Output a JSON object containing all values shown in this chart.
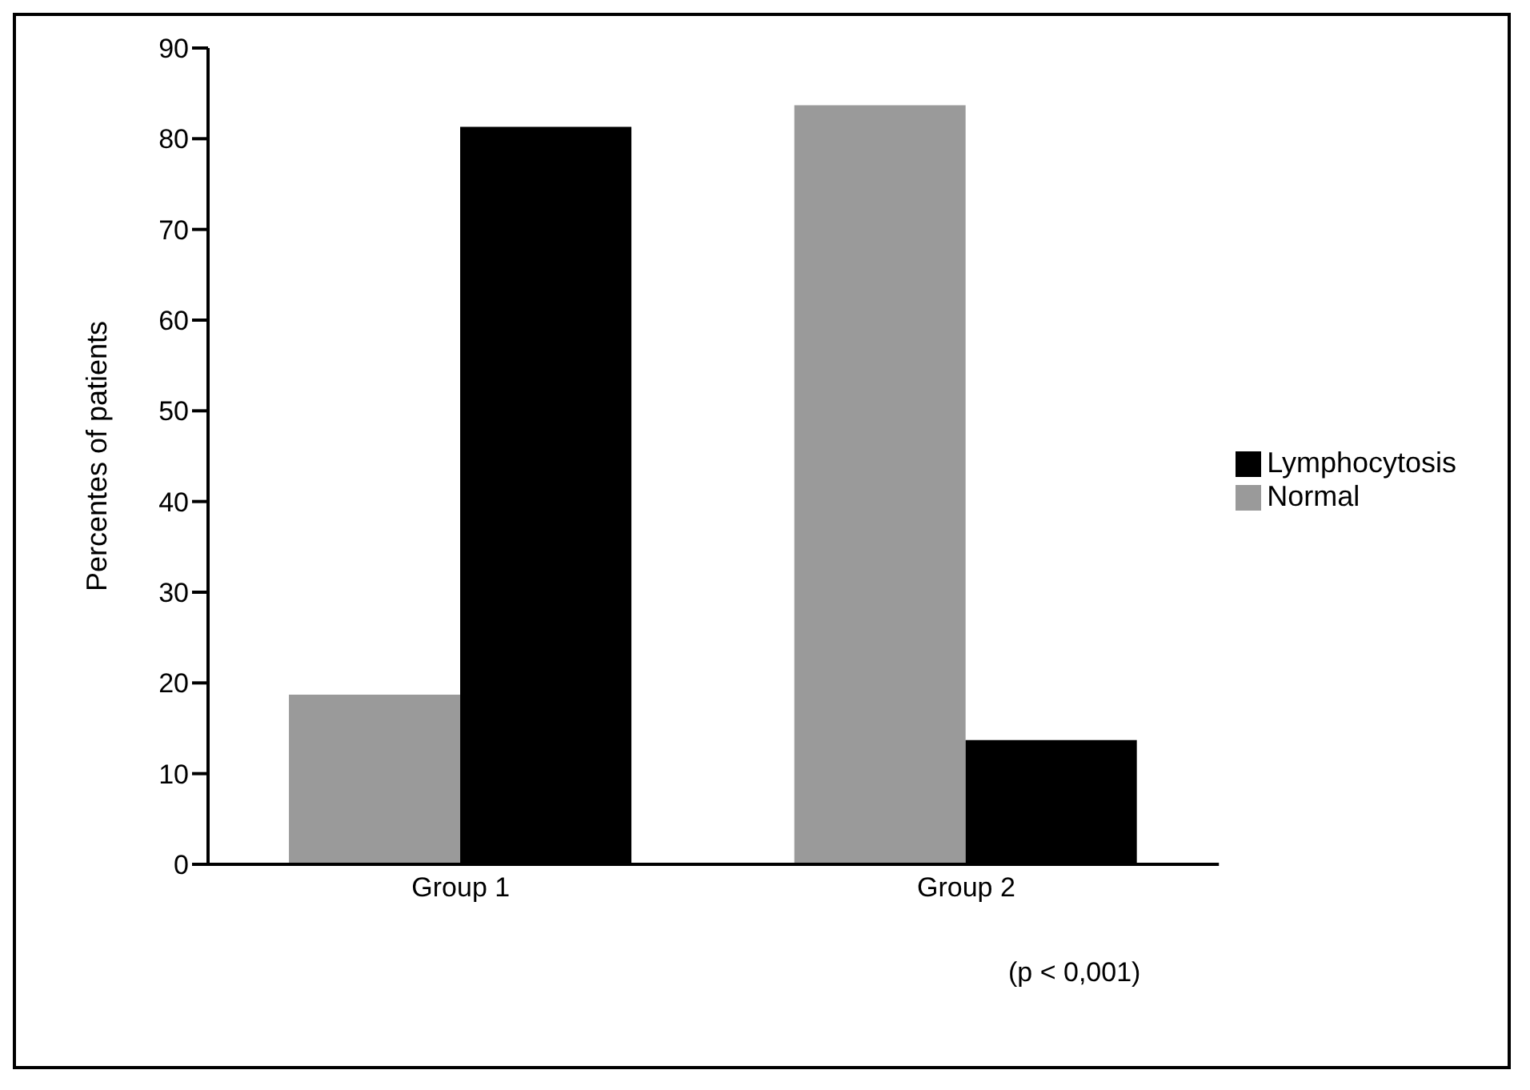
{
  "chart_data": {
    "type": "bar",
    "ylabel": "Percentes of patients",
    "categories": [
      "Group 1",
      "Group 2"
    ],
    "series": [
      {
        "name": "Normal",
        "color": "#9a9a9a",
        "values": [
          18.7,
          83.7
        ]
      },
      {
        "name": "Lymphocytosis",
        "color": "#000000",
        "values": [
          81.3,
          13.7
        ]
      }
    ],
    "ylim": [
      0,
      90
    ],
    "yticks": [
      0,
      10,
      20,
      30,
      40,
      50,
      60,
      70,
      80,
      90
    ],
    "grid": false,
    "legend": "right",
    "annotations": [
      "(p < 0,001)"
    ]
  }
}
